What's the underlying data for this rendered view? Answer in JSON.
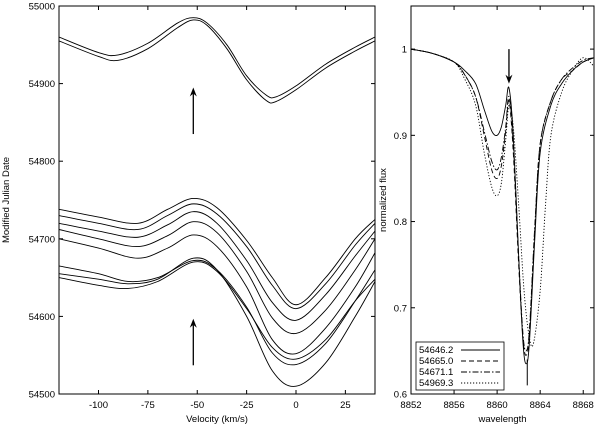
{
  "chart_data": [
    {
      "type": "line",
      "xlabel": "Velocity (km/s)",
      "ylabel": "Modified Julian Date",
      "xlim": [
        -120,
        40
      ],
      "ylim": [
        54500,
        55000
      ],
      "xticks": [
        -100,
        -75,
        -50,
        -25,
        0,
        25
      ],
      "xtick_labels": [
        "-100",
        "-75",
        "-50",
        "-25",
        "0",
        "25"
      ],
      "yticks": [
        54500,
        54600,
        54700,
        54800,
        54900,
        55000
      ],
      "ytick_labels": [
        "54500",
        "54600",
        "54700",
        "54800",
        "54900",
        "55000"
      ],
      "grid": false,
      "annotations": [
        {
          "type": "arrow",
          "x": -52,
          "y_tail": 54835,
          "y_head": 54895
        },
        {
          "type": "arrow",
          "x": -52,
          "y_tail": 54537,
          "y_head": 54597
        }
      ],
      "series": [
        {
          "x": [
            -120,
            -100,
            -90,
            -75,
            -60,
            -52,
            -45,
            -35,
            -25,
            -15,
            -10,
            0,
            15,
            30,
            40
          ],
          "y": [
            54955,
            54935,
            54930,
            54945,
            54972,
            54982,
            54975,
            54945,
            54905,
            54878,
            54877,
            54892,
            54920,
            54942,
            54955
          ]
        },
        {
          "x": [
            -120,
            -100,
            -90,
            -75,
            -60,
            -52,
            -45,
            -35,
            -25,
            -15,
            -10,
            0,
            15,
            30,
            40
          ],
          "y": [
            54960,
            54940,
            54937,
            54952,
            54978,
            54985,
            54978,
            54950,
            54910,
            54885,
            54883,
            54897,
            54925,
            54947,
            54960
          ]
        },
        {
          "x": [
            -120,
            -100,
            -80,
            -65,
            -52,
            -40,
            -25,
            -12,
            0,
            15,
            30,
            40
          ],
          "y": [
            54738,
            54728,
            54720,
            54738,
            54752,
            54740,
            54698,
            54650,
            54615,
            54650,
            54700,
            54725
          ]
        },
        {
          "x": [
            -120,
            -100,
            -80,
            -65,
            -52,
            -40,
            -25,
            -12,
            0,
            15,
            30,
            40
          ],
          "y": [
            54730,
            54720,
            54712,
            54730,
            54745,
            54732,
            54690,
            54640,
            54610,
            54642,
            54692,
            54720
          ]
        },
        {
          "x": [
            -120,
            -100,
            -80,
            -65,
            -52,
            -40,
            -25,
            -12,
            0,
            15,
            30,
            40
          ],
          "y": [
            54720,
            54710,
            54702,
            54718,
            54735,
            54720,
            54672,
            54618,
            54595,
            54628,
            54678,
            54710
          ]
        },
        {
          "x": [
            -120,
            -100,
            -80,
            -65,
            -52,
            -40,
            -25,
            -12,
            0,
            15,
            30,
            40
          ],
          "y": [
            54712,
            54700,
            54690,
            54704,
            54722,
            54708,
            54658,
            54598,
            54578,
            54608,
            54660,
            54700
          ]
        },
        {
          "x": [
            -120,
            -100,
            -80,
            -65,
            -52,
            -40,
            -25,
            -12,
            0,
            15,
            30,
            40
          ],
          "y": [
            54700,
            54688,
            54675,
            54688,
            54705,
            54690,
            54638,
            54570,
            54552,
            54585,
            54638,
            54682
          ]
        },
        {
          "x": [
            -120,
            -100,
            -85,
            -70,
            -52,
            -40,
            -25,
            -12,
            0,
            15,
            30,
            40
          ],
          "y": [
            54665,
            54655,
            54645,
            54650,
            54672,
            54660,
            54612,
            54553,
            54538,
            54565,
            54620,
            54660
          ]
        },
        {
          "x": [
            -120,
            -100,
            -85,
            -70,
            -52,
            -40,
            -25,
            -12,
            0,
            15,
            30,
            40
          ],
          "y": [
            54655,
            54648,
            54642,
            54648,
            54675,
            54660,
            54600,
            54530,
            54510,
            54540,
            54600,
            54645
          ]
        },
        {
          "x": [
            -120,
            -100,
            -85,
            -70,
            -52,
            -40,
            -25,
            -12,
            0,
            15,
            30,
            40
          ],
          "y": [
            54650,
            54640,
            54636,
            54645,
            54670,
            54658,
            54610,
            54560,
            54545,
            54570,
            54620,
            54648
          ]
        }
      ]
    },
    {
      "type": "line",
      "xlabel": "wavelength",
      "ylabel": "normalized flux",
      "xlim": [
        8852,
        8869
      ],
      "ylim": [
        0.6,
        1.05
      ],
      "xticks": [
        8852,
        8856,
        8860,
        8864,
        8868
      ],
      "xtick_labels": [
        "8852",
        "8856",
        "8860",
        "8864",
        "8868"
      ],
      "yticks": [
        0.6,
        0.7,
        0.8,
        0.9,
        1.0
      ],
      "ytick_labels": [
        "0.6",
        "0.7",
        "0.8",
        "0.9",
        "1"
      ],
      "grid": false,
      "legend_position": "bottom-left",
      "annotations": [
        {
          "type": "arrow",
          "x": 8861.1,
          "y_tail": 1.0,
          "y_head": 0.96
        },
        {
          "type": "vline",
          "x": 8862.8,
          "y_from": 0.61,
          "y_to": 0.64
        }
      ],
      "series": [
        {
          "name": "54646.2",
          "style": "solid",
          "x": [
            8852,
            8854,
            8856,
            8857,
            8858,
            8858.8,
            8859.5,
            8860,
            8860.4,
            8860.8,
            8861.1,
            8861.5,
            8862,
            8862.4,
            8862.7,
            8863,
            8863.5,
            8864,
            8865,
            8866,
            8867,
            8868,
            8869
          ],
          "y": [
            1.0,
            0.995,
            0.985,
            0.975,
            0.96,
            0.93,
            0.905,
            0.9,
            0.91,
            0.935,
            0.955,
            0.9,
            0.76,
            0.66,
            0.635,
            0.66,
            0.78,
            0.88,
            0.935,
            0.96,
            0.975,
            0.985,
            0.99
          ]
        },
        {
          "name": "54665.0",
          "style": "dashed",
          "x": [
            8852,
            8854,
            8856,
            8857,
            8858,
            8858.8,
            8859.5,
            8860,
            8860.4,
            8860.8,
            8861.1,
            8861.5,
            8862,
            8862.4,
            8862.7,
            8863,
            8863.5,
            8864,
            8865,
            8866,
            8867,
            8868,
            8869
          ],
          "y": [
            1.0,
            0.995,
            0.985,
            0.97,
            0.945,
            0.9,
            0.86,
            0.85,
            0.865,
            0.905,
            0.94,
            0.88,
            0.75,
            0.665,
            0.645,
            0.67,
            0.79,
            0.89,
            0.94,
            0.965,
            0.975,
            0.985,
            0.99
          ]
        },
        {
          "name": "54671.1",
          "style": "dash-dot",
          "x": [
            8852,
            8854,
            8856,
            8857,
            8858,
            8858.8,
            8859.5,
            8860,
            8860.4,
            8860.8,
            8861.1,
            8861.5,
            8862,
            8862.4,
            8862.7,
            8863,
            8863.5,
            8864,
            8865,
            8866,
            8867,
            8868,
            8869
          ],
          "y": [
            1.0,
            0.995,
            0.985,
            0.97,
            0.945,
            0.905,
            0.87,
            0.86,
            0.875,
            0.91,
            0.945,
            0.89,
            0.76,
            0.67,
            0.65,
            0.675,
            0.795,
            0.89,
            0.94,
            0.965,
            0.978,
            0.987,
            0.99
          ]
        },
        {
          "name": "54969.3",
          "style": "dotted",
          "x": [
            8852,
            8854,
            8856,
            8857,
            8858,
            8858.8,
            8859.5,
            8860,
            8860.4,
            8860.8,
            8861.1,
            8861.5,
            8862,
            8862.5,
            8863,
            8863.4,
            8864,
            8864.5,
            8865,
            8866,
            8867,
            8868,
            8869
          ],
          "y": [
            1.0,
            0.995,
            0.985,
            0.965,
            0.935,
            0.88,
            0.84,
            0.83,
            0.845,
            0.895,
            0.935,
            0.91,
            0.82,
            0.72,
            0.665,
            0.66,
            0.72,
            0.82,
            0.9,
            0.95,
            0.975,
            0.99,
            0.98
          ]
        }
      ]
    }
  ]
}
